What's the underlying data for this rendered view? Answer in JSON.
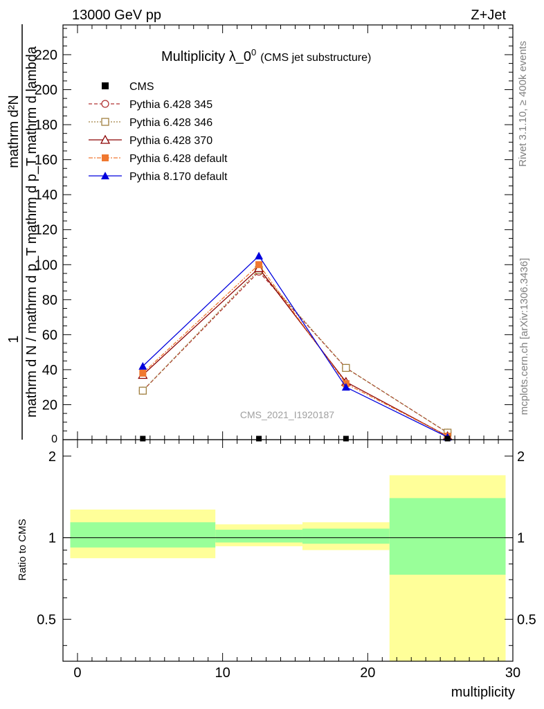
{
  "header": {
    "left": "13000 GeV pp",
    "right": "Z+Jet"
  },
  "side": {
    "rivet": "Rivet 3.1.10, ≥ 400k events",
    "mcplots": "mcplots.cern.ch [arXiv:1306.3436]"
  },
  "chart_data": {
    "type": "line",
    "title_main": "Multiplicity λ_0",
    "title_sup": "0",
    "title_sub": "(CMS jet substructure)",
    "watermark": "CMS_2021_I1920187",
    "ylabel_num": "mathrm d²N",
    "ylabel_den": "mathrm d N / mathrm d p_T mathrm d p_T mathrm d lambda",
    "ylabel_one": "1",
    "xlabel": "multiplicity",
    "ratio_ylabel": "Ratio to CMS",
    "xlim": [
      -1,
      30
    ],
    "ylim": [
      0,
      237
    ],
    "yticks": [
      20,
      40,
      60,
      80,
      100,
      120,
      140,
      160,
      180,
      200,
      220
    ],
    "ytick_labels": [
      "20",
      "40",
      "60",
      "80",
      "100",
      "120",
      "140",
      "160",
      "180",
      "200",
      "220"
    ],
    "ytick_zero": "0",
    "xticks": [
      0,
      10,
      20,
      30
    ],
    "xtick_labels": [
      "0",
      "10",
      "20",
      "30"
    ],
    "ratio_ylim": [
      0.35,
      2.3
    ],
    "ratio_yticks": [
      0.5,
      1,
      2
    ],
    "ratio_ytick_labels": [
      "0.5",
      "1",
      "2"
    ],
    "cms": {
      "name": "CMS",
      "x": [
        4.5,
        12.5,
        18.5,
        25.5
      ],
      "y": [
        0.6,
        0.6,
        0.6,
        0.6
      ]
    },
    "series": [
      {
        "name": "Pythia 6.428 345",
        "color": "#b03030",
        "dash": "5,3",
        "marker": "circle-open",
        "x": [
          4.5,
          12.5,
          18.5,
          25.5
        ],
        "y": [
          28,
          96,
          41,
          4
        ]
      },
      {
        "name": "Pythia 6.428 346",
        "color": "#a08040",
        "dash": "2,2",
        "marker": "square-open",
        "x": [
          4.5,
          12.5,
          18.5,
          25.5
        ],
        "y": [
          28,
          97,
          41,
          4
        ]
      },
      {
        "name": "Pythia 6.428 370",
        "color": "#8b0000",
        "dash": "",
        "marker": "triangle-open",
        "x": [
          4.5,
          12.5,
          18.5,
          25.5
        ],
        "y": [
          37,
          98,
          33,
          2
        ]
      },
      {
        "name": "Pythia 6.428 default",
        "color": "#f07830",
        "dash": "6,2,2,2",
        "marker": "square-filled",
        "x": [
          4.5,
          12.5,
          18.5,
          25.5
        ],
        "y": [
          38,
          100,
          32,
          2
        ]
      },
      {
        "name": "Pythia 8.170 default",
        "color": "#0000dd",
        "dash": "",
        "marker": "triangle-filled",
        "x": [
          4.5,
          12.5,
          18.5,
          25.5
        ],
        "y": [
          42,
          105,
          30,
          1.5
        ]
      }
    ],
    "bands": [
      {
        "x0": -0.5,
        "x1": 9.5,
        "yellow": [
          0.84,
          1.27
        ],
        "green": [
          0.92,
          1.14
        ]
      },
      {
        "x0": 9.5,
        "x1": 15.5,
        "yellow": [
          0.93,
          1.12
        ],
        "green": [
          0.96,
          1.07
        ]
      },
      {
        "x0": 15.5,
        "x1": 21.5,
        "yellow": [
          0.9,
          1.14
        ],
        "green": [
          0.95,
          1.08
        ]
      },
      {
        "x0": 21.5,
        "x1": 29.5,
        "yellow": [
          0.35,
          1.7
        ],
        "green": [
          0.73,
          1.4
        ]
      }
    ]
  }
}
